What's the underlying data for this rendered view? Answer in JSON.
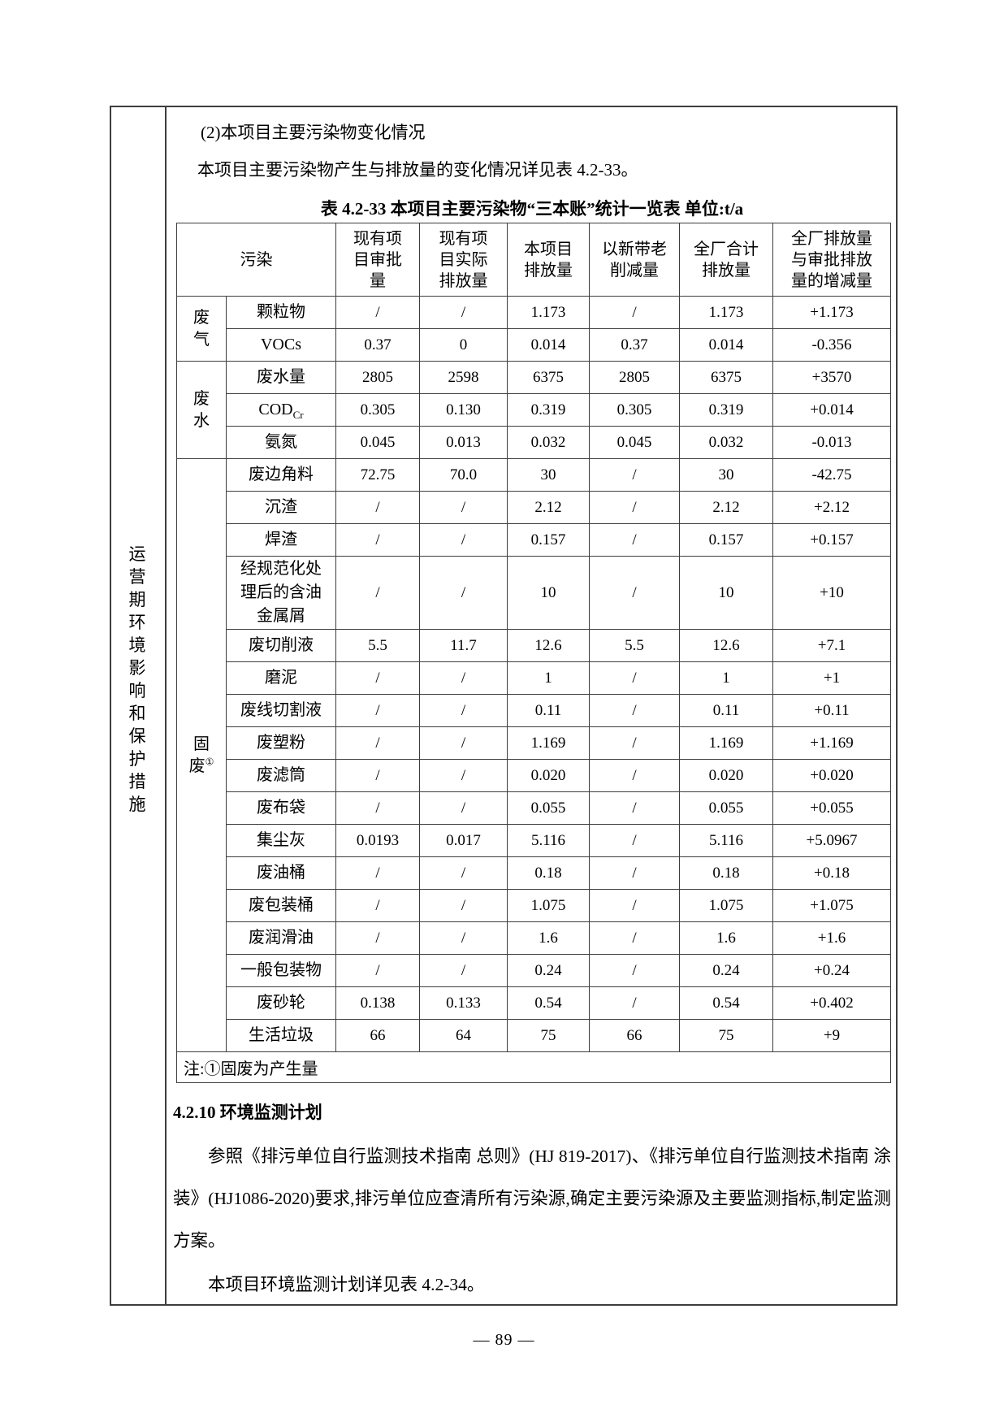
{
  "sidebar": {
    "label": "运营期环境影响和保护措施"
  },
  "content": {
    "heading": "(2)本项目主要污染物变化情况",
    "intro": "本项目主要污染物产生与排放量的变化情况详见表 4.2-33。",
    "table_title": "表 4.2-33  本项目主要污染物“三本账”统计一览表 单位:t/a"
  },
  "table": {
    "headers": [
      "污染",
      "现有项\n目审批\n量",
      "现有项\n目实际\n排放量",
      "本项目\n排放量",
      "以新带老\n削减量",
      "全厂合计\n排放量",
      "全厂排放量\n与审批排放\n量的增减量"
    ],
    "groups": [
      {
        "label": "废\n气",
        "rows": [
          {
            "name": "颗粒物",
            "cells": [
              "/",
              "/",
              "1.173",
              "/",
              "1.173",
              "+1.173"
            ]
          },
          {
            "name": "VOCs",
            "cells": [
              "0.37",
              "0",
              "0.014",
              "0.37",
              "0.014",
              "-0.356"
            ]
          }
        ]
      },
      {
        "label": "废\n水",
        "rows": [
          {
            "name": "废水量",
            "cells": [
              "2805",
              "2598",
              "6375",
              "2805",
              "6375",
              "+3570"
            ]
          },
          {
            "name": "COD",
            "sub": "Cr",
            "cells": [
              "0.305",
              "0.130",
              "0.319",
              "0.305",
              "0.319",
              "+0.014"
            ]
          },
          {
            "name": "氨氮",
            "cells": [
              "0.045",
              "0.013",
              "0.032",
              "0.045",
              "0.032",
              "-0.013"
            ]
          }
        ]
      },
      {
        "label": "固\n废",
        "sup": "①",
        "rows": [
          {
            "name": "废边角料",
            "cells": [
              "72.75",
              "70.0",
              "30",
              "/",
              "30",
              "-42.75"
            ]
          },
          {
            "name": "沉渣",
            "cells": [
              "/",
              "/",
              "2.12",
              "/",
              "2.12",
              "+2.12"
            ]
          },
          {
            "name": "焊渣",
            "cells": [
              "/",
              "/",
              "0.157",
              "/",
              "0.157",
              "+0.157"
            ]
          },
          {
            "name": "经规范化处\n理后的含油\n金属屑",
            "cells": [
              "/",
              "/",
              "10",
              "/",
              "10",
              "+10"
            ]
          },
          {
            "name": "废切削液",
            "cells": [
              "5.5",
              "11.7",
              "12.6",
              "5.5",
              "12.6",
              "+7.1"
            ]
          },
          {
            "name": "磨泥",
            "cells": [
              "/",
              "/",
              "1",
              "/",
              "1",
              "+1"
            ]
          },
          {
            "name": "废线切割液",
            "cells": [
              "/",
              "/",
              "0.11",
              "/",
              "0.11",
              "+0.11"
            ]
          },
          {
            "name": "废塑粉",
            "cells": [
              "/",
              "/",
              "1.169",
              "/",
              "1.169",
              "+1.169"
            ]
          },
          {
            "name": "废滤筒",
            "cells": [
              "/",
              "/",
              "0.020",
              "/",
              "0.020",
              "+0.020"
            ]
          },
          {
            "name": "废布袋",
            "cells": [
              "/",
              "/",
              "0.055",
              "/",
              "0.055",
              "+0.055"
            ]
          },
          {
            "name": "集尘灰",
            "cells": [
              "0.0193",
              "0.017",
              "5.116",
              "/",
              "5.116",
              "+5.0967"
            ]
          },
          {
            "name": "废油桶",
            "cells": [
              "/",
              "/",
              "0.18",
              "/",
              "0.18",
              "+0.18"
            ]
          },
          {
            "name": "废包装桶",
            "cells": [
              "/",
              "/",
              "1.075",
              "/",
              "1.075",
              "+1.075"
            ]
          },
          {
            "name": "废润滑油",
            "cells": [
              "/",
              "/",
              "1.6",
              "/",
              "1.6",
              "+1.6"
            ]
          },
          {
            "name": "一般包装物",
            "cells": [
              "/",
              "/",
              "0.24",
              "/",
              "0.24",
              "+0.24"
            ]
          },
          {
            "name": "废砂轮",
            "cells": [
              "0.138",
              "0.133",
              "0.54",
              "/",
              "0.54",
              "+0.402"
            ]
          },
          {
            "name": "生活垃圾",
            "cells": [
              "66",
              "64",
              "75",
              "66",
              "75",
              "+9"
            ]
          }
        ]
      }
    ],
    "note": "注:①固废为产生量"
  },
  "section": {
    "heading": "4.2.10 环境监测计划",
    "para1": "参照《排污单位自行监测技术指南  总则》(HJ 819-2017)、《排污单位自行监测技术指南  涂装》(HJ1086-2020)要求,排污单位应查清所有污染源,确定主要污染源及主要监测指标,制定监测方案。",
    "para2": "本项目环境监测计划详见表 4.2-34。"
  },
  "page": {
    "number": "— 89 —"
  }
}
